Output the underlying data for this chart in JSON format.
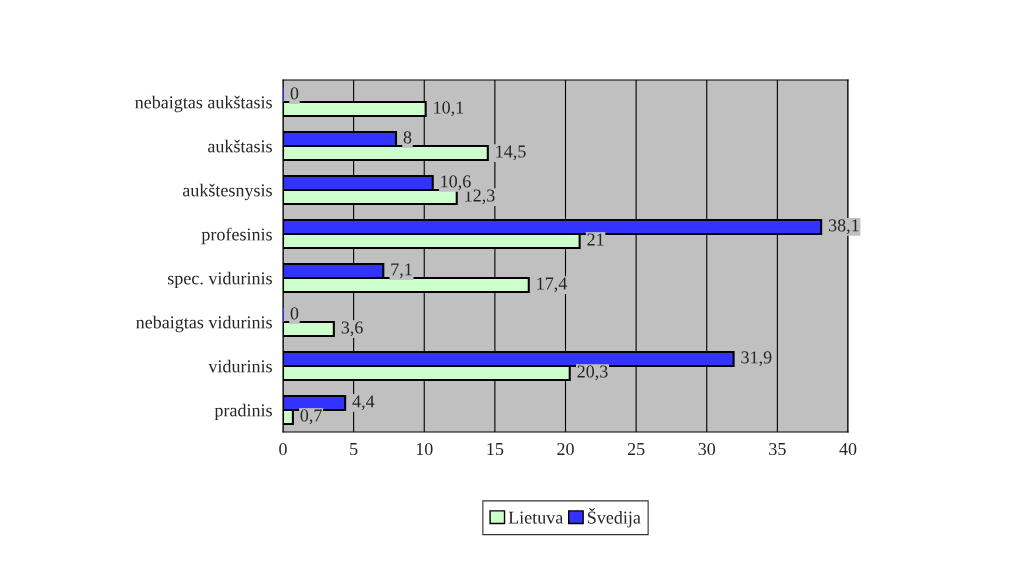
{
  "chart_data": {
    "type": "bar",
    "orientation": "horizontal",
    "categories": [
      "nebaigtas aukštasis",
      "aukštasis",
      "aukštesnysis",
      "profesinis",
      "spec. vidurinis",
      "nebaigtas vidurinis",
      "vidurinis",
      "pradinis"
    ],
    "series": [
      {
        "name": "Lietuva",
        "color": "#ccffcc",
        "values": [
          10.1,
          14.5,
          12.3,
          21,
          17.4,
          3.6,
          20.3,
          0.7
        ],
        "value_labels": [
          "10,1",
          "14,5",
          "12,3",
          "21",
          "17,4",
          "3,6",
          "20,3",
          "0,7"
        ]
      },
      {
        "name": "Švedija",
        "color": "#3333ff",
        "values": [
          0,
          8,
          10.6,
          38.1,
          7.1,
          0,
          31.9,
          4.4
        ],
        "value_labels": [
          "0",
          "8",
          "10,6",
          "38,1",
          "7,1",
          "0",
          "31,9",
          "4,4"
        ]
      }
    ],
    "xlim": [
      0,
      40
    ],
    "xticks": [
      0,
      5,
      10,
      15,
      20,
      25,
      30,
      35,
      40
    ],
    "grid": "x",
    "legend": "bottom"
  }
}
